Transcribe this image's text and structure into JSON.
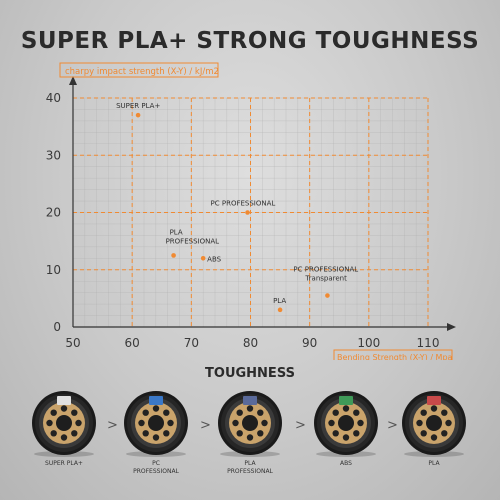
{
  "title": "SUPER PLA+ STRONG TOUGHNESS",
  "accent_color": "#f08a32",
  "chart_data": {
    "type": "scatter",
    "xlabel": "Bending Strength (X-Y) / Mpa",
    "ylabel": "charpy impact strength (X-Y) / kJ/m2",
    "xlim": [
      50,
      110
    ],
    "ylim": [
      0,
      40
    ],
    "x_ticks": [
      50,
      60,
      70,
      80,
      90,
      100,
      110
    ],
    "y_ticks": [
      0,
      10,
      20,
      30,
      40
    ],
    "grid": true,
    "points": [
      {
        "label": "SUPER PLA+",
        "x": 61,
        "y": 37
      },
      {
        "label": "PC PROFESSIONAL",
        "x": 79.5,
        "y": 20
      },
      {
        "label": "PLA\nPROFESSIONAL",
        "x": 67,
        "y": 12.5
      },
      {
        "label": "ABS",
        "x": 72,
        "y": 12
      },
      {
        "label": "PC PROFESSIONAL\nTransparent",
        "x": 93,
        "y": 5.5
      },
      {
        "label": "PLA",
        "x": 85,
        "y": 3
      }
    ]
  },
  "toughness": {
    "heading": "TOUGHNESS",
    "separator": ">",
    "items": [
      {
        "name": "SUPER PLA+",
        "label_color": "#e0e0e0"
      },
      {
        "name": "PC\nPROFESSIONAL",
        "label_color": "#3a78c8"
      },
      {
        "name": "PLA\nPROFESSIONAL",
        "label_color": "#5a6a9a"
      },
      {
        "name": "ABS",
        "label_color": "#3f9a58"
      },
      {
        "name": "PLA",
        "label_color": "#c84a4a"
      }
    ]
  }
}
